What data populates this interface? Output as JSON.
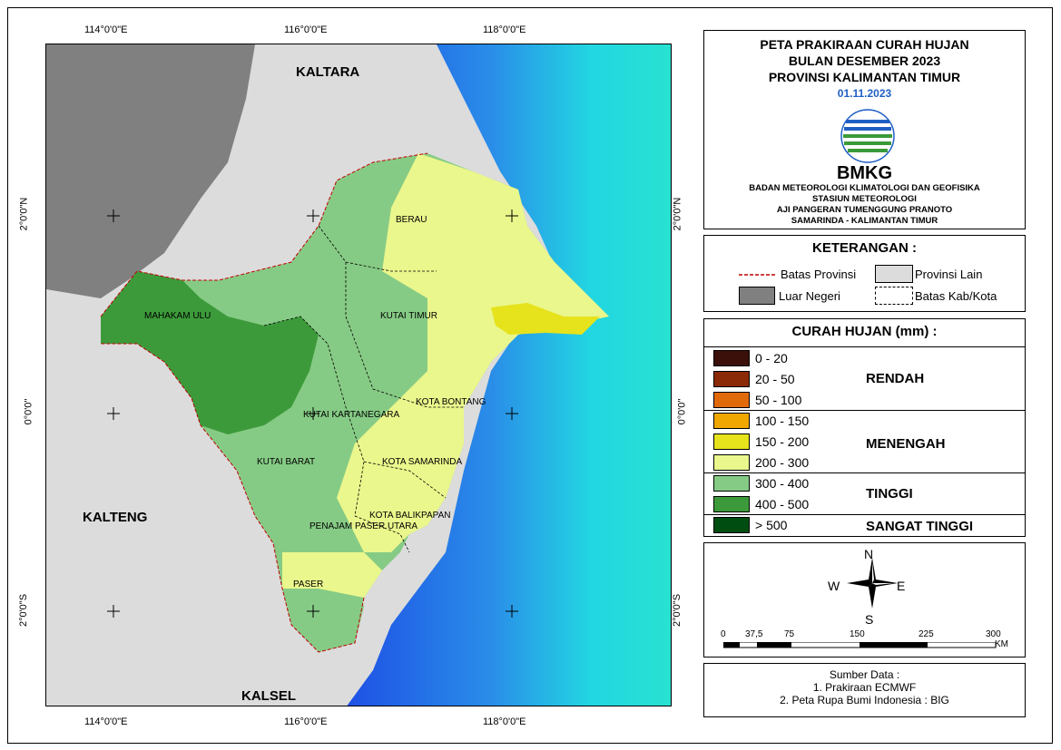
{
  "map": {
    "lon_labels": [
      "114°0'0\"E",
      "116°0'0\"E",
      "118°0'0\"E"
    ],
    "lat_labels": [
      "2°0'0\"N",
      "0°0'0\"",
      "2°0'0\"S"
    ],
    "regions": {
      "kaltara": "KALTARA",
      "kalteng": "KALTENG",
      "kalsel": "KALSEL",
      "berau": "BERAU",
      "mahakam_ulu": "MAHAKAM ULU",
      "kutai_timur": "KUTAI TIMUR",
      "kota_bontang": "KOTA BONTANG",
      "kutai_kartanegara": "KUTAI KARTANEGARA",
      "kutai_barat": "KUTAI BARAT",
      "kota_samarinda": "KOTA SAMARINDA",
      "kota_balikpapan": "KOTA BALIKPAPAN",
      "penajam": "PENAJAM PASER UTARA",
      "paser": "PASER"
    }
  },
  "title": {
    "line1": "PETA PRAKIRAAN CURAH HUJAN",
    "line2": "BULAN DESEMBER 2023",
    "line3": "PROVINSI KALIMANTAN TIMUR",
    "date": "01.11.2023",
    "brand": "BMKG",
    "inst1": "BADAN METEOROLOGI KLIMATOLOGI DAN GEOFISIKA",
    "inst2": "STASIUN METEOROLOGI",
    "inst3": "AJI PANGERAN TUMENGGUNG PRANOTO",
    "inst4": "SAMARINDA - KALIMANTAN TIMUR"
  },
  "keterangan": {
    "heading": "KETERANGAN :",
    "batas_provinsi": "Batas Provinsi",
    "provinsi_lain": "Provinsi Lain",
    "luar_negeri": "Luar Negeri",
    "batas_kab": "Batas Kab/Kota"
  },
  "legend": {
    "heading": "CURAH HUJAN (mm) :",
    "classes": [
      {
        "label": "0 - 20",
        "color": "#3b0f0a"
      },
      {
        "label": "20 - 50",
        "color": "#8b2a07"
      },
      {
        "label": "50 - 100",
        "color": "#e06a0a"
      },
      {
        "label": "100 - 150",
        "color": "#f0a800"
      },
      {
        "label": "150 - 200",
        "color": "#e6e21c"
      },
      {
        "label": "200 - 300",
        "color": "#eaf78c"
      },
      {
        "label": "300 - 400",
        "color": "#86cb85"
      },
      {
        "label": "400 - 500",
        "color": "#3c9a3a"
      },
      {
        "label": "> 500",
        "color": "#004d12"
      }
    ],
    "cat_rendah": "RENDAH",
    "cat_menengah": "MENENGAH",
    "cat_tinggi": "TINGGI",
    "cat_sangat_tinggi": "SANGAT TINGGI"
  },
  "compass": {
    "n": "N",
    "s": "S",
    "e": "E",
    "w": "W"
  },
  "scale": {
    "ticks": [
      "0",
      "37,5",
      "75",
      "150",
      "225",
      "300"
    ],
    "unit": "KM"
  },
  "source": {
    "heading": "Sumber Data :",
    "line1": "1. Prakiraan ECMWF",
    "line2": "2. Peta Rupa Bumi Indonesia : BIG"
  }
}
